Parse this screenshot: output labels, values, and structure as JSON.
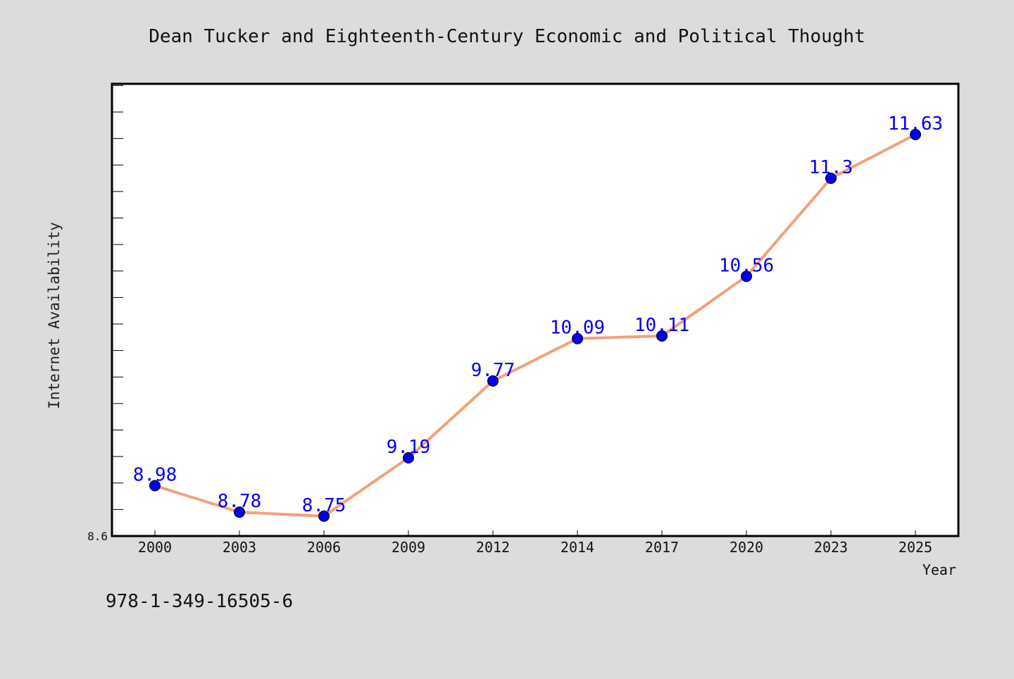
{
  "chart_data": {
    "type": "line",
    "title": "Dean Tucker and Eighteenth-Century Economic and Political Thought",
    "xlabel": "Year",
    "ylabel": "Internet Availability",
    "categories": [
      "2000",
      "2003",
      "2006",
      "2009",
      "2012",
      "2014",
      "2017",
      "2020",
      "2023",
      "2025"
    ],
    "series": [
      {
        "values": [
          8.98,
          8.78,
          8.75,
          9.19,
          9.77,
          10.09,
          10.11,
          10.56,
          11.3,
          11.63
        ],
        "labels": [
          "8.98",
          "8.78",
          "8.75",
          "9.19",
          "9.77",
          "10.09",
          "10.11",
          "10.56",
          "11.3",
          "11.63"
        ]
      }
    ],
    "ylim": [
      8.6,
      12.0
    ],
    "y_tick_labels": [
      "8.6"
    ],
    "grid": false,
    "colors": {
      "line": "#f4a07a",
      "marker": "#0000ee",
      "label": "#0000ee"
    }
  },
  "footer": {
    "isbn": "978-1-349-16505-6"
  }
}
